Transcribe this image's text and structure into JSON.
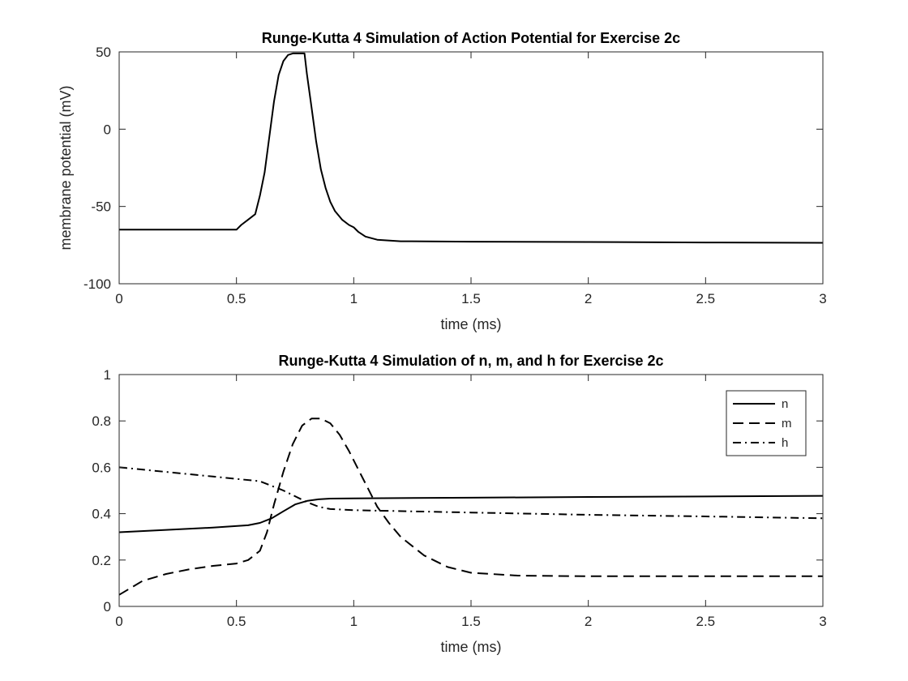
{
  "chart_data": [
    {
      "type": "line",
      "title": "Runge-Kutta 4 Simulation of Action Potential for Exercise 2c",
      "xlabel": "time (ms)",
      "ylabel": "membrane potential (mV)",
      "xlim": [
        0,
        3
      ],
      "ylim": [
        -100,
        50
      ],
      "xticks": [
        "0",
        "0.5",
        "1",
        "1.5",
        "2",
        "2.5",
        "3"
      ],
      "yticks": [
        "-100",
        "-50",
        "0",
        "50"
      ],
      "grid": false,
      "series": [
        {
          "color": "#000000",
          "dash": "solid",
          "x": [
            0,
            0.5,
            0.52,
            0.55,
            0.58,
            0.6,
            0.62,
            0.64,
            0.66,
            0.68,
            0.7,
            0.72,
            0.74,
            0.76,
            0.79,
            0.8,
            0.82,
            0.84,
            0.86,
            0.88,
            0.9,
            0.92,
            0.95,
            0.98,
            1.0,
            1.02,
            1.05,
            1.1,
            1.2,
            1.5,
            2.0,
            2.5,
            3.0
          ],
          "y": [
            -65,
            -65,
            -62,
            -58.5,
            -55,
            -43,
            -28,
            -5,
            18,
            35,
            44,
            48,
            49,
            49,
            49,
            36,
            14,
            -8,
            -26,
            -38,
            -47,
            -53,
            -58.5,
            -62,
            -63.5,
            -66.5,
            -69.5,
            -71.5,
            -72.5,
            -72.8,
            -73,
            -73.3,
            -73.5
          ]
        }
      ]
    },
    {
      "type": "line",
      "title": "Runge-Kutta 4 Simulation of n, m, and h for Exercise 2c",
      "xlabel": "time (ms)",
      "ylabel": "",
      "xlim": [
        0,
        3
      ],
      "ylim": [
        0,
        1
      ],
      "xticks": [
        "0",
        "0.5",
        "1",
        "1.5",
        "2",
        "2.5",
        "3"
      ],
      "yticks": [
        "0",
        "0.2",
        "0.4",
        "0.6",
        "0.8",
        "1"
      ],
      "grid": false,
      "legend_position": "top-right",
      "series": [
        {
          "name": "n",
          "color": "#000000",
          "dash": "solid",
          "x": [
            0,
            0.2,
            0.4,
            0.55,
            0.6,
            0.65,
            0.7,
            0.75,
            0.8,
            0.85,
            0.9,
            1.0,
            1.5,
            2.0,
            2.5,
            3.0
          ],
          "y": [
            0.32,
            0.33,
            0.34,
            0.35,
            0.36,
            0.38,
            0.41,
            0.44,
            0.455,
            0.462,
            0.465,
            0.466,
            0.469,
            0.472,
            0.474,
            0.477
          ]
        },
        {
          "name": "m",
          "color": "#000000",
          "dash": "long-dash",
          "x": [
            0,
            0.05,
            0.1,
            0.2,
            0.3,
            0.4,
            0.5,
            0.55,
            0.6,
            0.63,
            0.66,
            0.7,
            0.74,
            0.78,
            0.82,
            0.86,
            0.9,
            0.94,
            0.98,
            1.02,
            1.06,
            1.1,
            1.15,
            1.2,
            1.3,
            1.4,
            1.5,
            1.7,
            2.0,
            2.5,
            3.0
          ],
          "y": [
            0.05,
            0.08,
            0.11,
            0.14,
            0.16,
            0.175,
            0.185,
            0.2,
            0.24,
            0.32,
            0.44,
            0.58,
            0.7,
            0.78,
            0.81,
            0.81,
            0.79,
            0.74,
            0.67,
            0.59,
            0.51,
            0.43,
            0.36,
            0.3,
            0.22,
            0.17,
            0.145,
            0.133,
            0.13,
            0.13,
            0.13
          ]
        },
        {
          "name": "h",
          "color": "#000000",
          "dash": "dash-dot",
          "x": [
            0,
            0.2,
            0.4,
            0.5,
            0.6,
            0.65,
            0.7,
            0.75,
            0.8,
            0.85,
            0.9,
            1.0,
            1.5,
            2.0,
            2.5,
            3.0
          ],
          "y": [
            0.6,
            0.58,
            0.56,
            0.55,
            0.54,
            0.52,
            0.5,
            0.475,
            0.45,
            0.43,
            0.42,
            0.415,
            0.405,
            0.395,
            0.388,
            0.38
          ]
        }
      ]
    }
  ]
}
